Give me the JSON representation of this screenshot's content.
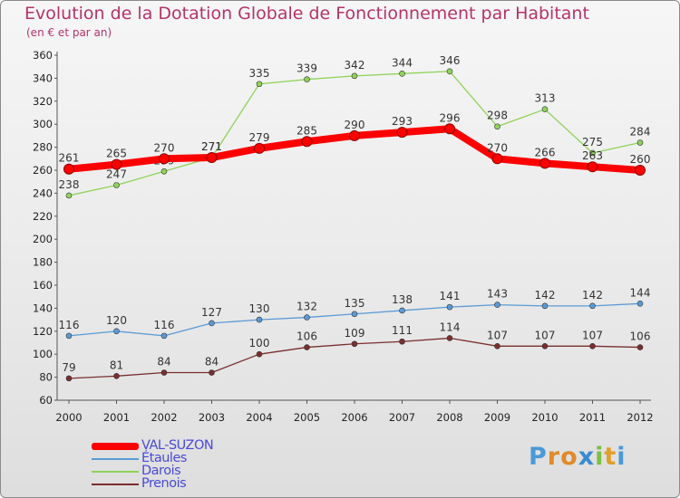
{
  "title": "Evolution de la Dotation Globale de Fonctionnement par Habitant",
  "subtitle": "(en € et par an)",
  "logo": {
    "text": "Proxiti",
    "letters": [
      "P",
      "r",
      "o",
      "x",
      "i",
      "t",
      "i"
    ],
    "colors": [
      "#4a9ad8",
      "#e08a2a",
      "#e08a2a",
      "#3a8ad0",
      "#7ac043",
      "#e0a02a",
      "#4a9ad8"
    ]
  },
  "colors": {
    "title": "#b5336a",
    "legend_text": "#4a4ad8"
  },
  "chart_data": {
    "type": "line",
    "x": [
      "2000",
      "2001",
      "2002",
      "2003",
      "2004",
      "2005",
      "2006",
      "2007",
      "2008",
      "2009",
      "2010",
      "2011",
      "2012"
    ],
    "ylim": [
      60,
      360
    ],
    "yticks": [
      60,
      80,
      100,
      120,
      140,
      160,
      180,
      200,
      220,
      240,
      260,
      280,
      300,
      320,
      340,
      360
    ],
    "grid": false,
    "legend_position": "bottom-left",
    "series": [
      {
        "name": "VAL-SUZON",
        "color": "#ff0000",
        "values": [
          261,
          265,
          270,
          271,
          279,
          285,
          290,
          293,
          296,
          270,
          266,
          263,
          260
        ]
      },
      {
        "name": "Étaules",
        "color": "#5b9bd5",
        "values": [
          116,
          120,
          116,
          127,
          130,
          132,
          135,
          138,
          141,
          143,
          142,
          142,
          144
        ]
      },
      {
        "name": "Darois",
        "color": "#8fd35a",
        "values": [
          238,
          247,
          259,
          271,
          335,
          339,
          342,
          344,
          346,
          298,
          313,
          275,
          284
        ]
      },
      {
        "name": "Prenois",
        "color": "#7a2e2e",
        "values": [
          79,
          81,
          84,
          84,
          100,
          106,
          109,
          111,
          114,
          107,
          107,
          107,
          106
        ]
      }
    ]
  }
}
